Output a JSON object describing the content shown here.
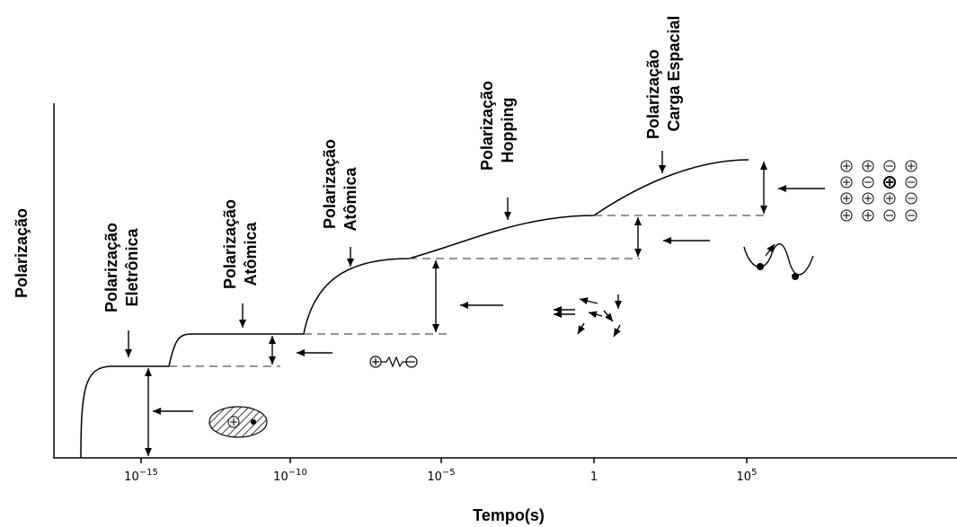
{
  "y_axis": {
    "label": "Polarização"
  },
  "x_axis": {
    "label": "Tempo(s)",
    "ticks": [
      {
        "base": "10",
        "exp": "−15"
      },
      {
        "base": "10",
        "exp": "−10"
      },
      {
        "base": "10",
        "exp": "−5"
      },
      {
        "base": "1"
      },
      {
        "base": "10",
        "exp": "5"
      }
    ]
  },
  "labels": [
    {
      "line1": "Polarização",
      "line2": "Eletrônica"
    },
    {
      "line1": "Polarização",
      "line2": "Atômica"
    },
    {
      "line1": "Polarização",
      "line2": "Atômica"
    },
    {
      "line1": "Polarização",
      "line2": "Hopping"
    },
    {
      "line1": "Polarização",
      "line2": "Carga Espacial"
    }
  ]
}
